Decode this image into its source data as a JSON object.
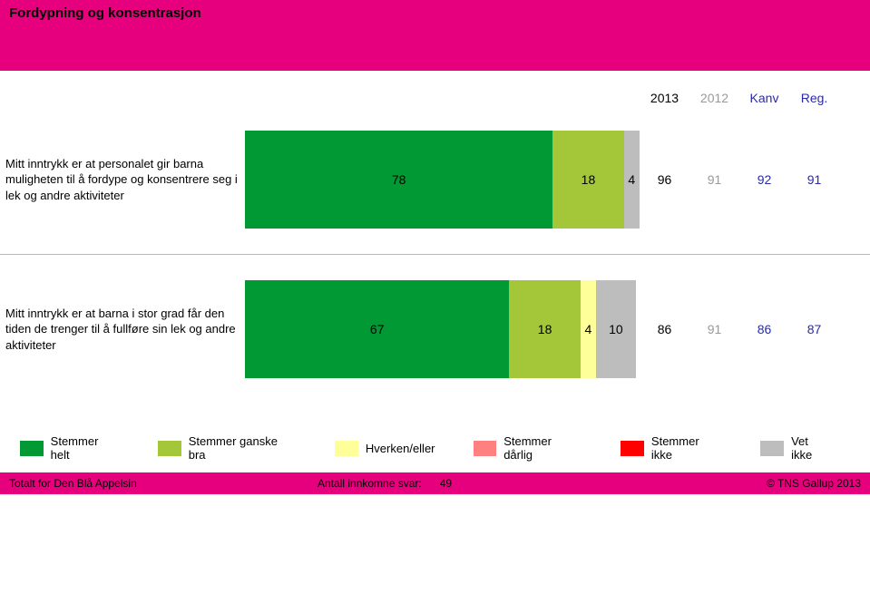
{
  "header": {
    "title": "Fordypning og konsentrasjon",
    "background_color": "#e6007e",
    "text_color": "#000000"
  },
  "column_headers": [
    {
      "label": "2013",
      "color": "#000000"
    },
    {
      "label": "2012",
      "color": "#9a9a9a"
    },
    {
      "label": "Kanv",
      "color": "#2a2aa8"
    },
    {
      "label": "Reg.",
      "color": "#2a2aa8"
    }
  ],
  "colors": {
    "stemmer_helt": "#009933",
    "stemmer_ganske_bra": "#a4c639",
    "hverken_eller": "#ffff99",
    "stemmer_darlig": "#ff8080",
    "stemmer_ikke": "#ff0000",
    "vet_ikke": "#bdbdbd"
  },
  "rows": [
    {
      "question": "Mitt inntrykk er at personalet gir barna muligheten til å fordype og konsentrere seg i lek og andre aktiviteter",
      "segments": [
        {
          "value": 78,
          "color_key": "stemmer_helt",
          "show_label": true
        },
        {
          "value": 18,
          "color_key": "stemmer_ganske_bra",
          "show_label": true
        },
        {
          "value": 4,
          "color_key": "vet_ikke",
          "show_label": true
        }
      ],
      "numbers": [
        {
          "value": 96,
          "color": "#000000"
        },
        {
          "value": 91,
          "color": "#9a9a9a"
        },
        {
          "value": 92,
          "color": "#2a2aa8"
        },
        {
          "value": 91,
          "color": "#2a2aa8"
        }
      ]
    },
    {
      "question": "Mitt inntrykk er at barna i stor grad får den tiden de trenger til å fullføre sin lek og andre aktiviteter",
      "segments": [
        {
          "value": 67,
          "color_key": "stemmer_helt",
          "show_label": true
        },
        {
          "value": 18,
          "color_key": "stemmer_ganske_bra",
          "show_label": true
        },
        {
          "value": 4,
          "color_key": "hverken_eller",
          "show_label": true
        },
        {
          "value": 10,
          "color_key": "vet_ikke",
          "show_label": true
        }
      ],
      "numbers": [
        {
          "value": 86,
          "color": "#000000"
        },
        {
          "value": 91,
          "color": "#9a9a9a"
        },
        {
          "value": 86,
          "color": "#2a2aa8"
        },
        {
          "value": 87,
          "color": "#2a2aa8"
        }
      ]
    }
  ],
  "legend": [
    {
      "label": "Stemmer helt",
      "color_key": "stemmer_helt"
    },
    {
      "label": "Stemmer ganske bra",
      "color_key": "stemmer_ganske_bra"
    },
    {
      "label": "Hverken/eller",
      "color_key": "hverken_eller"
    },
    {
      "label": "Stemmer dårlig",
      "color_key": "stemmer_darlig"
    },
    {
      "label": "Stemmer ikke",
      "color_key": "stemmer_ikke"
    },
    {
      "label": "Vet ikke",
      "color_key": "vet_ikke"
    }
  ],
  "footer": {
    "left": "Totalt for Den Blå Appelsin",
    "mid_label": "Antall innkomne svar:",
    "mid_value": "49",
    "right": "© TNS Gallup 2013",
    "background_color": "#e6007e",
    "text_color": "#000000"
  }
}
